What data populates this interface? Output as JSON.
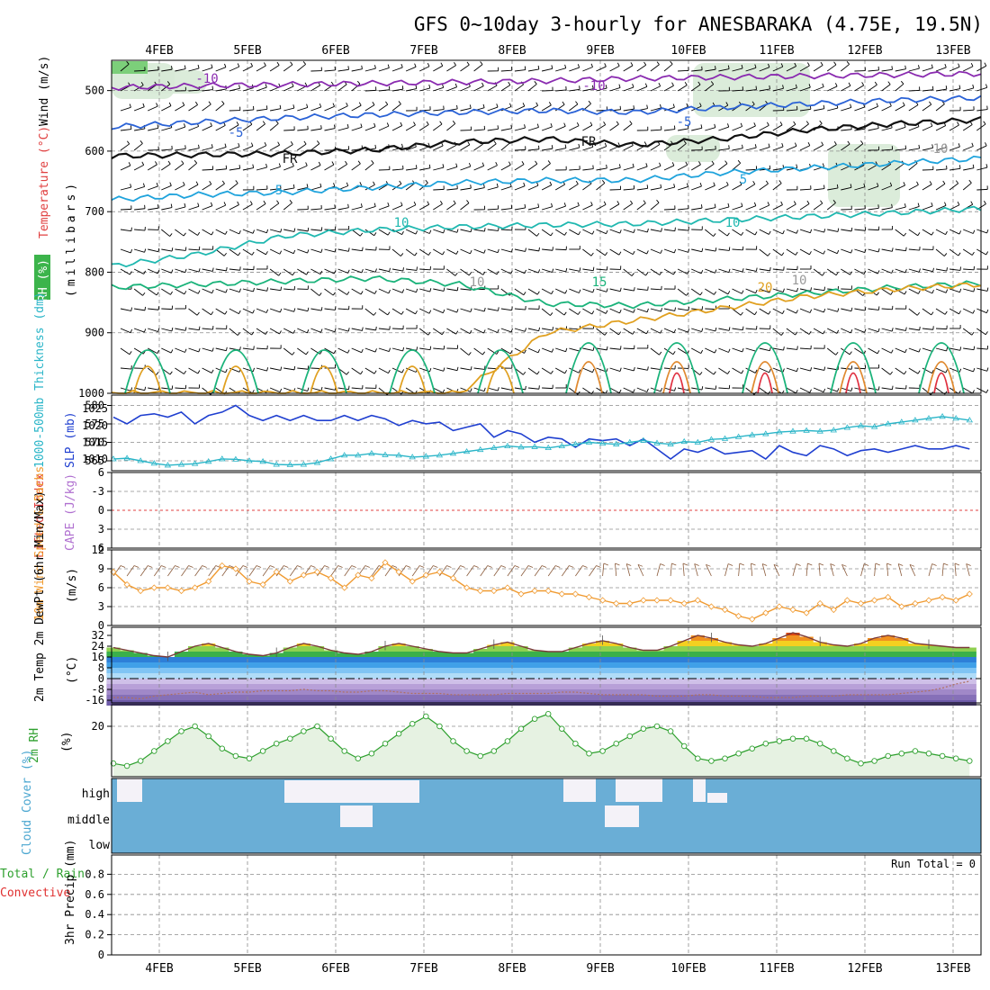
{
  "title": "GFS 0~10day 3-hourly for ANESBARAKA (4.75E, 19.5N)",
  "dates": [
    "4FEB",
    "5FEB",
    "6FEB",
    "7FEB",
    "8FEB",
    "9FEB",
    "10FEB",
    "11FEB",
    "12FEB",
    "13FEB"
  ],
  "colors": {
    "rh_green": "#3cb44b",
    "temp_red": "#e04040",
    "wind_blue": "#1e5fd6",
    "slp_blue": "#1f3fd0",
    "thick_cyan": "#2ab5c8",
    "cape_purple": "#b070d0",
    "wind10_orange": "#f09a30",
    "rh2m_green": "#2ea02e",
    "cloud_blue": "#6aaed6",
    "precip_green": "#2ea02e",
    "precip_red": "#e03030"
  },
  "chart_data": [
    {
      "panel": "upper_air_cross_section",
      "type": "line",
      "ylabel": "(millibars)",
      "side_labels": [
        "RH (%)",
        "Temperature (°C)",
        "Wind (m/s)"
      ],
      "y_ticks": [
        500,
        600,
        700,
        800,
        900,
        1000
      ],
      "ylim": [
        1000,
        450
      ],
      "series": [
        {
          "name": "-10",
          "pressures": [
            495,
            492,
            490,
            488,
            486,
            484,
            480,
            478,
            476,
            474,
            472
          ]
        },
        {
          "name": "-5",
          "pressures": [
            560,
            552,
            545,
            540,
            536,
            533,
            536,
            528,
            522,
            516,
            512
          ]
        },
        {
          "name": "FR",
          "pressures": [
            608,
            606,
            604,
            598,
            585,
            580,
            590,
            580,
            565,
            555,
            548
          ]
        },
        {
          "name": "5",
          "pressures": [
            680,
            672,
            668,
            660,
            652,
            648,
            648,
            636,
            628,
            620,
            612
          ]
        },
        {
          "name": "10",
          "pressures": [
            790,
            770,
            740,
            730,
            725,
            722,
            720,
            714,
            708,
            702,
            695
          ]
        },
        {
          "name": "15",
          "pressures": [
            825,
            820,
            815,
            810,
            820,
            852,
            855,
            845,
            835,
            825,
            818
          ]
        },
        {
          "name": "20",
          "pressures": [
            1000,
            1000,
            1000,
            1000,
            1000,
            900,
            880,
            860,
            840,
            828,
            820
          ]
        }
      ],
      "contour_labels": [
        "-10",
        "-10",
        "-5",
        "-5",
        "FR",
        "FR",
        "5",
        "5",
        "10",
        "10",
        "15",
        "20",
        "10",
        "10",
        "10"
      ]
    },
    {
      "panel": "slp_thickness",
      "type": "line",
      "left_label": "1000-500mb Thickness (dm)",
      "right_label": "SLP (mb)",
      "left_ticks": [
        565,
        570,
        575,
        580
      ],
      "right_ticks": [
        1010,
        1015,
        1020,
        1025
      ],
      "series": [
        {
          "name": "SLP (mb)",
          "axis": "right",
          "values": [
            1022.5,
            1020.5,
            1023,
            1023.5,
            1022.5,
            1024,
            1020.5,
            1023,
            1024,
            1026,
            1023,
            1021.5,
            1023,
            1021.5,
            1023,
            1021.5,
            1021.5,
            1023,
            1021.5,
            1023,
            1022,
            1020,
            1021.5,
            1020.5,
            1021,
            1018.5,
            1019.5,
            1020.5,
            1016.5,
            1018.5,
            1017.5,
            1015,
            1016.5,
            1016,
            1013.5,
            1016,
            1015.5,
            1016,
            1014,
            1016,
            1013,
            1010,
            1013,
            1012,
            1013.5,
            1011.5,
            1012,
            1012.5,
            1010,
            1014,
            1012,
            1011,
            1014,
            1013,
            1011,
            1012.5,
            1013,
            1012,
            1013,
            1014,
            1013,
            1013,
            1014,
            1013
          ]
        },
        {
          "name": "Thickness (dm)",
          "axis": "left",
          "values": [
            565.5,
            565.7,
            565,
            564.3,
            563.8,
            564,
            564.2,
            564.8,
            565.5,
            565.4,
            565,
            564.8,
            564,
            563.9,
            564,
            564.5,
            565.5,
            566.5,
            566.5,
            567,
            566.6,
            566.5,
            566,
            566.2,
            566.5,
            567,
            567.5,
            568,
            568.5,
            569,
            568.7,
            568.8,
            568.5,
            569,
            569.5,
            570,
            569.7,
            569.5,
            570,
            570.5,
            569.8,
            569.5,
            570.2,
            570,
            570.8,
            571,
            571.5,
            572,
            572.3,
            572.8,
            573,
            573.2,
            573,
            573.3,
            574,
            574.5,
            574.2,
            575,
            575.5,
            576,
            576.5,
            577,
            576.5,
            576
          ]
        }
      ]
    },
    {
      "panel": "stability",
      "type": "line",
      "left_label": "Lifted Index",
      "right_label": "CAPE (J/kg)",
      "y_ticks": [
        -6,
        -3,
        0,
        3,
        6
      ],
      "ylim": [
        6,
        -6
      ],
      "series": [
        {
          "name": "Lifted Index zero line",
          "values": [
            0
          ]
        }
      ]
    },
    {
      "panel": "wind_10m",
      "type": "line",
      "left_label": "10m Wind Speed & Barbs",
      "ylabel": "(m/s)",
      "y_ticks": [
        0,
        3,
        6,
        9,
        12
      ],
      "ylim": [
        0,
        12
      ],
      "series": [
        {
          "name": "10m Wind Speed",
          "values": [
            8.5,
            6.5,
            5.5,
            6,
            6,
            5.5,
            6,
            7,
            9.5,
            9,
            7,
            6.5,
            8.5,
            7,
            8,
            8.5,
            7.5,
            6,
            8,
            7.5,
            10,
            8.5,
            7,
            8,
            8.5,
            7.5,
            6,
            5.5,
            5.5,
            6,
            5,
            5.5,
            5.5,
            5,
            5,
            4.5,
            4,
            3.5,
            3.5,
            4,
            4,
            4,
            3.5,
            4,
            3,
            2.5,
            1.5,
            1,
            2,
            3,
            2.5,
            2,
            3.5,
            2.5,
            4,
            3.5,
            4,
            4.5,
            3,
            3.5,
            4,
            4.5,
            4,
            5
          ]
        }
      ]
    },
    {
      "panel": "temp_2m",
      "type": "area",
      "left_label": "2m Temp 2m DewPt (6hr Min/Max)",
      "ylabel": "(°C)",
      "y_ticks": [
        -16,
        -8,
        0,
        8,
        16,
        24,
        32
      ],
      "ylim": [
        -20,
        36
      ],
      "series": [
        {
          "name": "2m Temp",
          "values": [
            23,
            21,
            19,
            17,
            16,
            20,
            24,
            26,
            23,
            20,
            18,
            17,
            19,
            23,
            26,
            24,
            21,
            19,
            18,
            20,
            24,
            26,
            24,
            22,
            20,
            19,
            19,
            22,
            25,
            27,
            24,
            21,
            20,
            20,
            23,
            26,
            28,
            26,
            23,
            21,
            21,
            24,
            28,
            32,
            30,
            27,
            25,
            24,
            26,
            30,
            34,
            31,
            27,
            25,
            24,
            26,
            30,
            32,
            30,
            26,
            25,
            24,
            23,
            23
          ]
        },
        {
          "name": "2m DewPt",
          "values": [
            -14,
            -14,
            -15,
            -13,
            -12,
            -11,
            -10,
            -12,
            -11,
            -10,
            -10,
            -9,
            -9,
            -9,
            -8,
            -9,
            -9,
            -10,
            -10,
            -9,
            -9,
            -10,
            -11,
            -11,
            -11,
            -12,
            -12,
            -12,
            -12,
            -11,
            -11,
            -11,
            -11,
            -10,
            -10,
            -11,
            -12,
            -12,
            -12,
            -12,
            -13,
            -13,
            -13,
            -12,
            -12,
            -13,
            -13,
            -13,
            -14,
            -14,
            -14,
            -13,
            -13,
            -13,
            -12,
            -12,
            -12,
            -12,
            -11,
            -10,
            -9,
            -7,
            -4,
            -2
          ]
        }
      ]
    },
    {
      "panel": "rh_2m",
      "type": "line",
      "left_label": "2m RH",
      "ylabel": "(%)",
      "y_ticks": [
        20
      ],
      "ylim": [
        0,
        30
      ],
      "series": [
        {
          "name": "2m RH",
          "values": [
            5,
            4,
            6,
            10,
            14,
            18,
            20,
            16,
            11,
            8,
            7,
            10,
            13,
            15,
            18,
            20,
            15,
            10,
            7,
            9,
            13,
            17,
            21,
            24,
            20,
            14,
            10,
            8,
            10,
            14,
            19,
            23,
            25,
            19,
            13,
            9,
            10,
            13,
            16,
            19,
            20,
            18,
            12,
            7,
            6,
            7,
            9,
            11,
            13,
            14,
            15,
            15,
            13,
            10,
            7,
            5,
            6,
            8,
            9,
            10,
            9,
            8,
            7,
            6
          ]
        }
      ]
    },
    {
      "panel": "cloud_cover",
      "type": "area",
      "left_label": "Cloud Cover (%)",
      "categories": [
        "high",
        "middle",
        "low"
      ]
    },
    {
      "panel": "precip_3hr",
      "type": "bar",
      "left_label": "3hr Precip (mm)",
      "side_labels": [
        "Total / Rain",
        "Convective"
      ],
      "y_ticks": [
        0,
        0.2,
        0.4,
        0.6,
        0.8
      ],
      "ylim": [
        0,
        1
      ],
      "run_total": "Run Total = 0",
      "values": []
    }
  ]
}
